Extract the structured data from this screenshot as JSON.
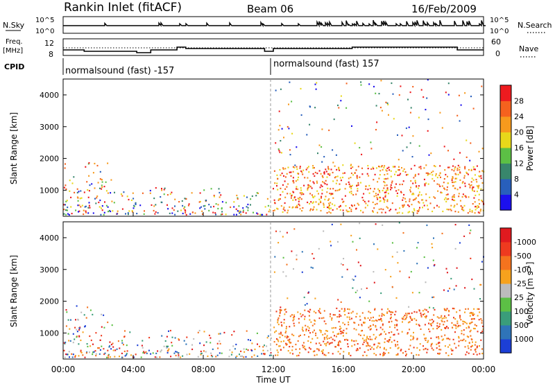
{
  "header": {
    "station": "Rankin Inlet (fitACF)",
    "beam": "Beam 06",
    "date": "16/Feb/2009"
  },
  "params": {
    "nsky_label": "N.Sky",
    "nsearch_label": "N.Search",
    "freq_label_1": "Freq.",
    "freq_label_2": "[MHz]",
    "nave_label": "Nave",
    "cpid_label": "CPID",
    "left_ticks_top": [
      "10^5",
      "10^0"
    ],
    "right_ticks_top": [
      "10^5",
      "10^0"
    ],
    "left_ticks_freq": [
      "12",
      "8"
    ],
    "right_ticks_nave": [
      "60",
      "0"
    ],
    "cpid_segments": [
      {
        "label": "normalsound (fast) -157",
        "start_hour": 0,
        "end_hour": 12
      },
      {
        "label": "normalsound (fast) 157",
        "start_hour": 12,
        "end_hour": 24
      }
    ]
  },
  "chart_data": [
    {
      "type": "heatmap",
      "title": "",
      "ylabel": "Slant Range [km]",
      "xlabel": "Time UT",
      "x_ticks": [
        "00:00",
        "04:00",
        "08:00",
        "12:00",
        "16:00",
        "20:00",
        "00:00"
      ],
      "xlim_hours": [
        0,
        24
      ],
      "y_ticks": [
        1000,
        2000,
        3000,
        4000
      ],
      "ylim": [
        180,
        4500
      ],
      "colorbar": {
        "label": "Power [dB]",
        "ticks": [
          "4",
          "8",
          "12",
          "16",
          "20",
          "24",
          "28"
        ],
        "colors": [
          "#1c10ee",
          "#285fbc",
          "#38866c",
          "#5cc045",
          "#e8d81a",
          "#f79a1d",
          "#f5621e",
          "#ee1b1f"
        ]
      },
      "scatter_regions": [
        {
          "hours": [
            0.0,
            3.0
          ],
          "range_km": [
            250,
            1900
          ],
          "level": "mixed"
        },
        {
          "hours": [
            3.0,
            12.0
          ],
          "range_km": [
            250,
            1100
          ],
          "level": "mixed"
        },
        {
          "hours": [
            12.0,
            24.0
          ],
          "range_km": [
            300,
            1800
          ],
          "level": "high"
        },
        {
          "hours": [
            12.0,
            24.0
          ],
          "range_km": [
            1800,
            4500
          ],
          "level": "sparse"
        }
      ]
    },
    {
      "type": "heatmap",
      "title": "",
      "ylabel": "Slant Range [km]",
      "xlabel": "Time UT",
      "x_ticks": [
        "00:00",
        "04:00",
        "08:00",
        "12:00",
        "16:00",
        "20:00",
        "00:00"
      ],
      "xlim_hours": [
        0,
        24
      ],
      "y_ticks": [
        1000,
        2000,
        3000,
        4000
      ],
      "ylim": [
        180,
        4500
      ],
      "colorbar": {
        "label": "Velocity [m s^-1]",
        "ticks": [
          "1000",
          "500",
          "100",
          "25",
          "-25",
          "-100",
          "-500",
          "-1000"
        ],
        "colors": [
          "#1c3fd6",
          "#2f74b8",
          "#3a9d7a",
          "#5cc045",
          "#bcbcbc",
          "#f7a21d",
          "#f5731e",
          "#ee3a1f",
          "#e01a1f"
        ]
      },
      "scatter_regions": [
        {
          "hours": [
            0.0,
            3.0
          ],
          "range_km": [
            250,
            1900
          ],
          "level": "mixed"
        },
        {
          "hours": [
            3.0,
            12.0
          ],
          "range_km": [
            250,
            1100
          ],
          "level": "mixed"
        },
        {
          "hours": [
            12.0,
            24.0
          ],
          "range_km": [
            300,
            1800
          ],
          "level": "negative"
        },
        {
          "hours": [
            12.0,
            24.0
          ],
          "range_km": [
            1800,
            4500
          ],
          "level": "sparse"
        }
      ]
    }
  ]
}
